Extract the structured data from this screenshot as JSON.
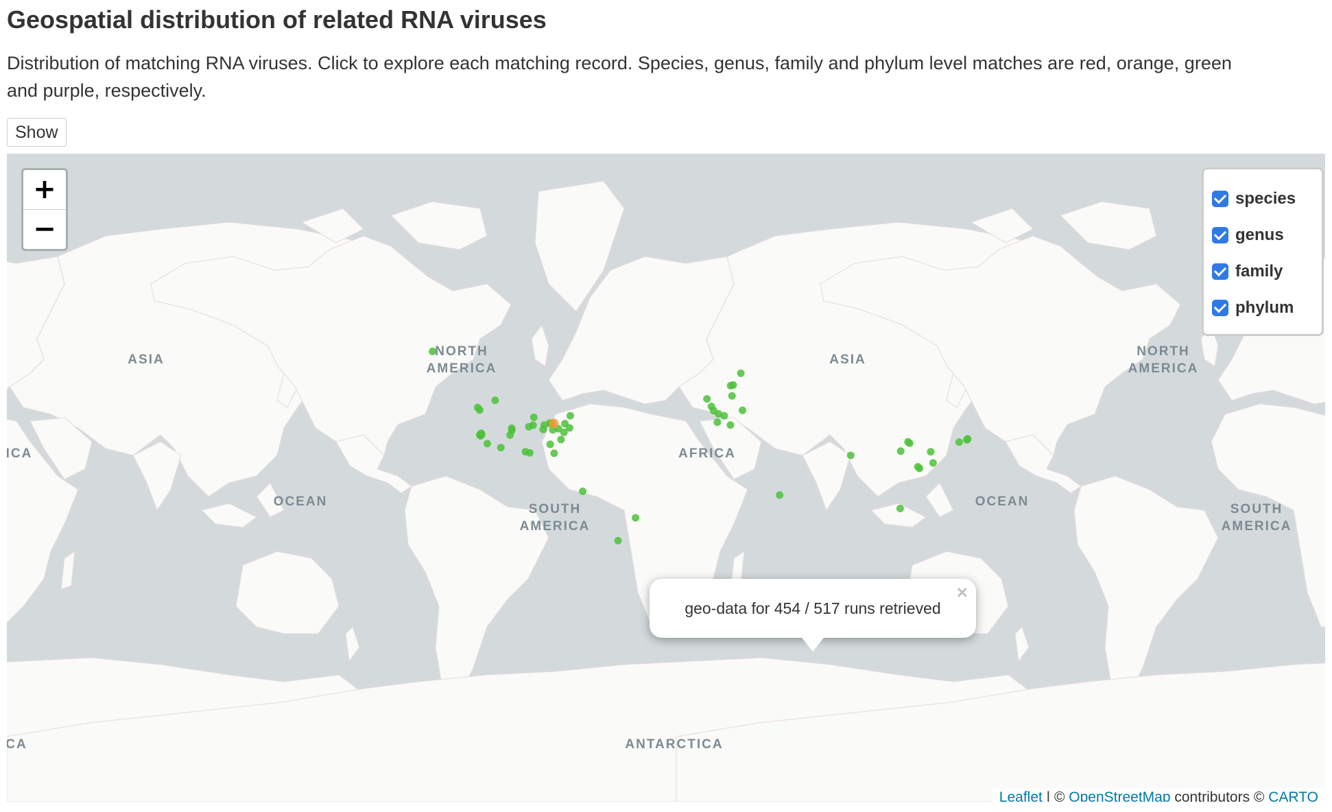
{
  "page": {
    "title": "Geospatial distribution of related RNA viruses",
    "description": "Distribution of matching RNA viruses. Click to explore each matching record. Species, genus, family and phylum level matches are red, orange, green and purple, respectively.",
    "show_label": "Show"
  },
  "map": {
    "zoom_in": "+",
    "zoom_out": "−",
    "labels": {
      "asia_left": "ASIA",
      "north_america_1": "NORTH",
      "north_america_2": "AMERICA",
      "ica_left": "ICA",
      "ocean_left": "OCEAN",
      "south_america_1": "SOUTH",
      "south_america_2": "AMERICA",
      "africa": "AFRICA",
      "asia": "ASIA",
      "ocean_right": "OCEAN",
      "north_america_right_1": "NORTH",
      "north_america_right_2": "AMERICA",
      "south_america_right_1": "SOUTH",
      "south_america_right_2": "AMERICA",
      "antarctica": "ANTARCTICA",
      "ca_left": "CA"
    },
    "layers": [
      {
        "label": "species",
        "checked": true
      },
      {
        "label": "genus",
        "checked": true
      },
      {
        "label": "family",
        "checked": true
      },
      {
        "label": "phylum",
        "checked": true
      }
    ],
    "popup": {
      "text": "geo-data for 454 / 517 runs retrieved",
      "close": "×"
    },
    "attribution": {
      "leaflet": "Leaflet",
      "sep": " | © ",
      "osm": "OpenStreetMap",
      "contrib": " contributors © ",
      "carto": "CARTO"
    },
    "colors": {
      "water": "#d4dadc",
      "land": "#fafaf8",
      "family_marker": "#4cc13a",
      "genus_marker": "#f39a34"
    },
    "markers": [
      {
        "lat": 64.8,
        "lon": -147.7,
        "level": "family"
      },
      {
        "lat": 51.0,
        "lon": -114.0,
        "level": "family"
      },
      {
        "lat": 48.5,
        "lon": -123.4,
        "level": "family"
      },
      {
        "lat": 47.6,
        "lon": -122.3,
        "level": "family"
      },
      {
        "lat": 38.5,
        "lon": -121.5,
        "level": "family"
      },
      {
        "lat": 37.8,
        "lon": -122.3,
        "level": "family"
      },
      {
        "lat": 37.4,
        "lon": -121.9,
        "level": "family"
      },
      {
        "lat": 37.9,
        "lon": -121.2,
        "level": "family"
      },
      {
        "lat": 34.0,
        "lon": -118.2,
        "level": "family"
      },
      {
        "lat": 39.7,
        "lon": -105.0,
        "level": "family"
      },
      {
        "lat": 40.6,
        "lon": -105.1,
        "level": "family"
      },
      {
        "lat": 37.7,
        "lon": -106.0,
        "level": "family"
      },
      {
        "lat": 41.2,
        "lon": -95.9,
        "level": "family"
      },
      {
        "lat": 41.8,
        "lon": -93.6,
        "level": "family"
      },
      {
        "lat": 41.9,
        "lon": -87.6,
        "level": "family"
      },
      {
        "lat": 42.3,
        "lon": -83.7,
        "level": "family"
      },
      {
        "lat": 42.7,
        "lon": -84.5,
        "level": "family"
      },
      {
        "lat": 40.1,
        "lon": -88.2,
        "level": "family"
      },
      {
        "lat": 39.9,
        "lon": -83.0,
        "level": "family"
      },
      {
        "lat": 40.4,
        "lon": -80.0,
        "level": "family"
      },
      {
        "lat": 40.7,
        "lon": -74.0,
        "level": "family"
      },
      {
        "lat": 42.4,
        "lon": -76.5,
        "level": "family"
      },
      {
        "lat": 38.9,
        "lon": -77.0,
        "level": "family"
      },
      {
        "lat": 44.9,
        "lon": -93.2,
        "level": "family"
      },
      {
        "lat": 35.8,
        "lon": -78.6,
        "level": "family"
      },
      {
        "lat": 33.7,
        "lon": -84.4,
        "level": "family"
      },
      {
        "lat": 30.3,
        "lon": -97.7,
        "level": "family"
      },
      {
        "lat": 29.6,
        "lon": -82.3,
        "level": "family"
      },
      {
        "lat": 32.2,
        "lon": -110.9,
        "level": "family"
      },
      {
        "lat": 29.8,
        "lon": -95.4,
        "level": "family"
      },
      {
        "lat": 45.5,
        "lon": -73.6,
        "level": "family"
      },
      {
        "lat": 10.5,
        "lon": -66.9,
        "level": "family"
      },
      {
        "lat": -3.7,
        "lon": -38.5,
        "level": "family"
      },
      {
        "lat": -15.8,
        "lon": -47.9,
        "level": "family"
      },
      {
        "lat": 59.3,
        "lon": 18.1,
        "level": "family"
      },
      {
        "lat": 55.7,
        "lon": 12.6,
        "level": "family"
      },
      {
        "lat": 55.9,
        "lon": 14.0,
        "level": "family"
      },
      {
        "lat": 52.5,
        "lon": 13.4,
        "level": "family"
      },
      {
        "lat": 51.5,
        "lon": -0.1,
        "level": "family"
      },
      {
        "lat": 48.9,
        "lon": 2.3,
        "level": "family"
      },
      {
        "lat": 47.4,
        "lon": 3.5,
        "level": "family"
      },
      {
        "lat": 46.2,
        "lon": 6.1,
        "level": "family"
      },
      {
        "lat": 45.5,
        "lon": 9.2,
        "level": "family"
      },
      {
        "lat": 43.0,
        "lon": 5.5,
        "level": "family"
      },
      {
        "lat": 41.9,
        "lon": 12.5,
        "level": "family"
      },
      {
        "lat": 47.5,
        "lon": 19.0,
        "level": "family"
      },
      {
        "lat": 8.5,
        "lon": 39.0,
        "level": "family"
      },
      {
        "lat": 28.6,
        "lon": 77.2,
        "level": "family"
      },
      {
        "lat": 34.2,
        "lon": 108.9,
        "level": "family"
      },
      {
        "lat": 34.8,
        "lon": 108.0,
        "level": "family"
      },
      {
        "lat": 30.6,
        "lon": 104.1,
        "level": "family"
      },
      {
        "lat": 23.1,
        "lon": 113.3,
        "level": "family"
      },
      {
        "lat": 22.3,
        "lon": 114.2,
        "level": "family"
      },
      {
        "lat": 25.0,
        "lon": 121.5,
        "level": "family"
      },
      {
        "lat": 30.3,
        "lon": 120.2,
        "level": "family"
      },
      {
        "lat": 35.7,
        "lon": 139.7,
        "level": "family"
      },
      {
        "lat": 36.1,
        "lon": 140.1,
        "level": "family"
      },
      {
        "lat": 34.7,
        "lon": 135.5,
        "level": "family"
      },
      {
        "lat": 1.3,
        "lon": 103.8,
        "level": "family"
      },
      {
        "lat": 42.5,
        "lon": -82.5,
        "level": "genus"
      }
    ]
  }
}
